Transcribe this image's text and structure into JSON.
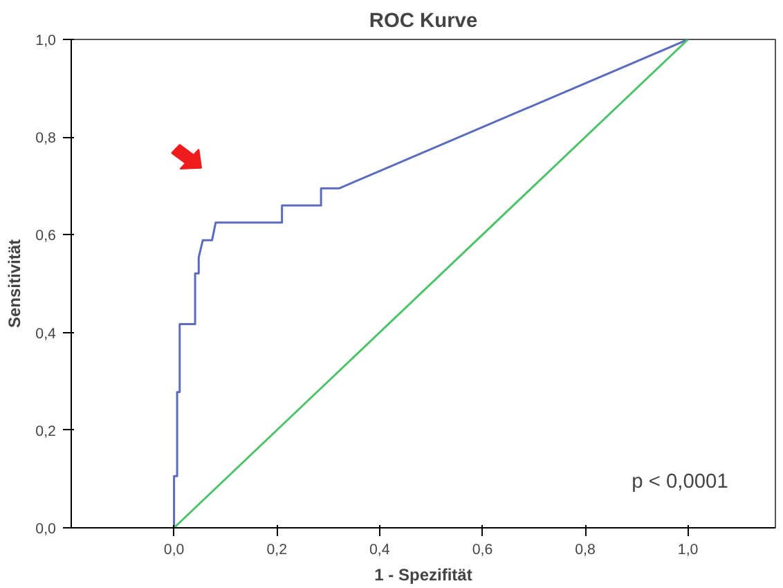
{
  "chart_data": {
    "type": "line",
    "title": "ROC Kurve",
    "xlabel": "1 - Spezifität",
    "ylabel": "Sensitivität",
    "xlim": [
      -0.2,
      1.17
    ],
    "ylim": [
      0,
      1
    ],
    "xticks": [
      {
        "value": 0,
        "label": "0,0"
      },
      {
        "value": 0.2,
        "label": "0,2"
      },
      {
        "value": 0.4,
        "label": "0,4"
      },
      {
        "value": 0.6,
        "label": "0,6"
      },
      {
        "value": 0.8,
        "label": "0,8"
      },
      {
        "value": 1,
        "label": "1,0"
      }
    ],
    "yticks": [
      {
        "value": 0,
        "label": "0,0"
      },
      {
        "value": 0.2,
        "label": "0,2"
      },
      {
        "value": 0.4,
        "label": "0,4"
      },
      {
        "value": 0.6,
        "label": "0,6"
      },
      {
        "value": 0.8,
        "label": "0,8"
      },
      {
        "value": 1,
        "label": "1,0"
      }
    ],
    "marker": "none",
    "line_style": "solid",
    "series": [
      {
        "color": "#5b6bbf",
        "x": [
          0,
          0,
          0.006,
          0.006,
          0.011,
          0.011,
          0.017,
          0.017,
          0.041,
          0.041,
          0.048,
          0.048,
          0.056,
          0.074,
          0.081,
          0.21,
          0.21,
          0.286,
          0.286,
          0.321,
          1
        ],
        "values": [
          0,
          0.106,
          0.106,
          0.278,
          0.278,
          0.417,
          0.417,
          0.417,
          0.417,
          0.521,
          0.521,
          0.554,
          0.589,
          0.589,
          0.625,
          0.625,
          0.66,
          0.66,
          0.695,
          0.695,
          1
        ]
      },
      {
        "color": "#4cc26a",
        "x": [
          0,
          1
        ],
        "values": [
          0,
          1
        ]
      }
    ],
    "annotations": [
      "p < 0,0001"
    ]
  }
}
